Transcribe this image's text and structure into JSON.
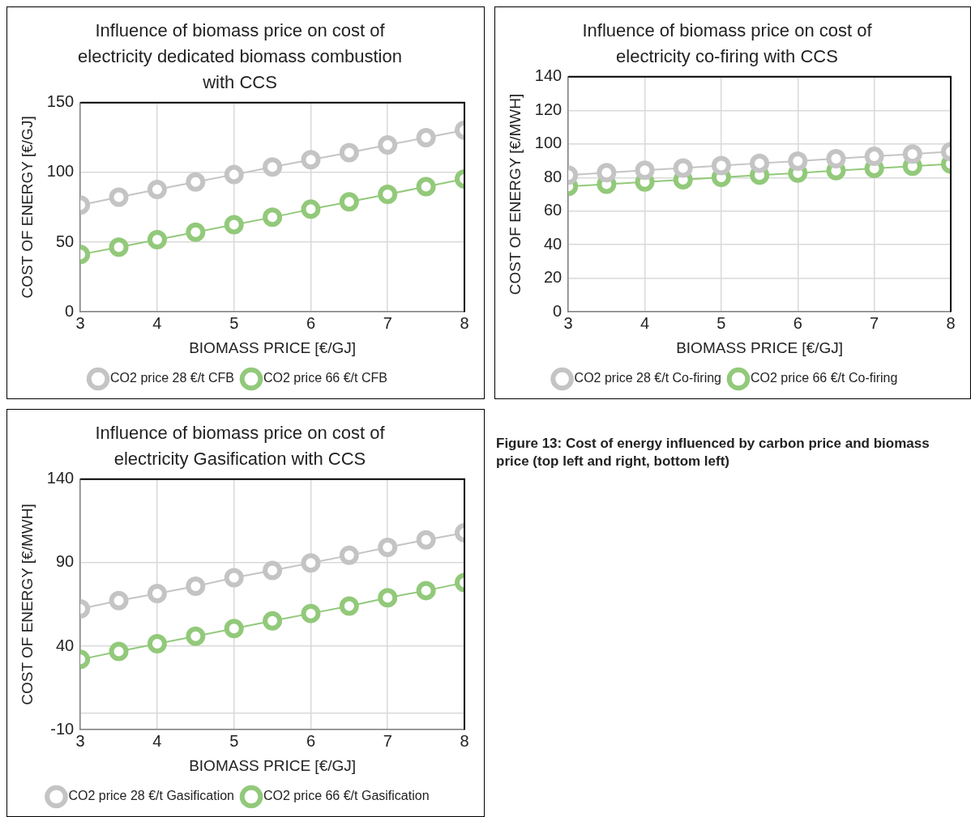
{
  "chart_data": [
    {
      "type": "line",
      "title": "Influence of biomass price on cost of electricity dedicated biomass combustion with CCS",
      "xlabel": "BIOMASS PRICE [€/GJ]",
      "ylabel": "COST OF ENERGY [€/GJ]",
      "x": [
        3,
        3.5,
        4,
        4.5,
        5,
        5.5,
        6,
        6.5,
        7,
        7.5,
        8
      ],
      "xlim": [
        3,
        8
      ],
      "xticks": [
        3,
        4,
        5,
        6,
        7,
        8
      ],
      "ylim": [
        0,
        150
      ],
      "yticks": [
        0,
        50,
        100,
        150
      ],
      "grid": true,
      "legend": "bottom",
      "marker": "circle",
      "series": [
        {
          "name": "CO2 price 28 €/t CFB",
          "color": "#c4c4c4",
          "values": [
            76.6,
            82.2,
            87.7,
            93.1,
            98.4,
            103.8,
            109.1,
            114.2,
            119.6,
            124.9,
            130.3
          ]
        },
        {
          "name": "CO2 price 66 €/t CFB",
          "color": "#92c97a",
          "values": [
            41.1,
            46.4,
            51.8,
            57.1,
            62.5,
            67.8,
            73.6,
            78.9,
            84.2,
            89.8,
            95.3
          ]
        }
      ]
    },
    {
      "type": "line",
      "title": "Influence of biomass price on cost of electricity co-firing with CCS",
      "xlabel": "BIOMASS PRICE [€/GJ]",
      "ylabel": "COST OF ENERGY [€/MWH]",
      "x": [
        3,
        3.5,
        4,
        4.5,
        5,
        5.5,
        6,
        6.5,
        7,
        7.5,
        8
      ],
      "xlim": [
        3,
        8
      ],
      "xticks": [
        3,
        4,
        5,
        6,
        7,
        8
      ],
      "ylim": [
        0,
        140
      ],
      "yticks": [
        0,
        20,
        40,
        60,
        80,
        100,
        120,
        140
      ],
      "grid": true,
      "legend": "bottom",
      "marker": "circle",
      "series": [
        {
          "name": "CO2 price 28 €/t Co-firing",
          "color": "#c4c4c4",
          "values": [
            81.5,
            82.9,
            84.3,
            85.7,
            87.1,
            88.5,
            89.8,
            91.2,
            92.6,
            94.0,
            95.4
          ]
        },
        {
          "name": "CO2 price 66 €/t Co-firing",
          "color": "#92c97a",
          "values": [
            74.7,
            76.0,
            77.4,
            78.7,
            80.1,
            81.4,
            82.7,
            84.1,
            85.4,
            86.8,
            88.1
          ]
        }
      ]
    },
    {
      "type": "line",
      "title": "Influence of biomass price on cost of electricity Gasification with CCS",
      "xlabel": "BIOMASS PRICE [€/GJ]",
      "ylabel": "COST OF ENERGY [€/MWH]",
      "x": [
        3,
        3.5,
        4,
        4.5,
        5,
        5.5,
        6,
        6.5,
        7,
        7.5,
        8
      ],
      "xlim": [
        3,
        8
      ],
      "xticks": [
        3,
        4,
        5,
        6,
        7,
        8
      ],
      "ylim": [
        -10,
        140
      ],
      "yticks": [
        -10,
        {
          "value": 0,
          "label": null
        },
        40,
        90,
        140
      ],
      "grid": true,
      "legend": "bottom",
      "marker": "circle",
      "annotations": [
        "Figure 13: Cost of energy influenced by carbon price and biomass price (top left and right, bottom left)"
      ],
      "series": [
        {
          "name": "CO2 price 28 €/t Gasification",
          "color": "#c4c4c4",
          "values": [
            62.3,
            67.3,
            71.5,
            75.9,
            81.0,
            85.4,
            89.8,
            94.4,
            99.2,
            103.7,
            107.9
          ]
        },
        {
          "name": "CO2 price 66 €/t Gasification",
          "color": "#92c97a",
          "values": [
            32.1,
            36.9,
            41.5,
            46.0,
            50.6,
            55.2,
            59.6,
            64.0,
            69.0,
            73.3,
            78.1
          ]
        }
      ]
    }
  ]
}
